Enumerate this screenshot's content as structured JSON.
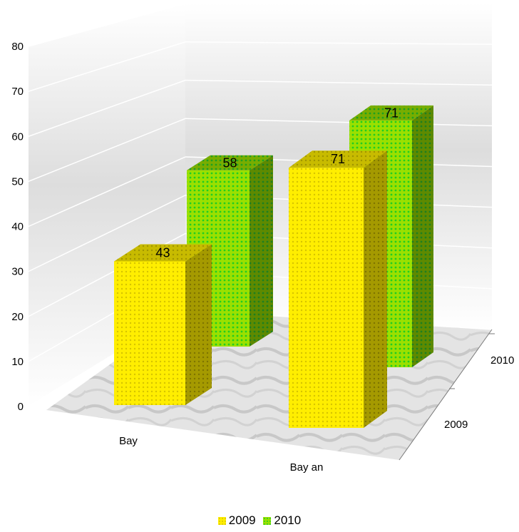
{
  "chart_data": {
    "type": "bar",
    "categories": [
      "Bay",
      "Bay an"
    ],
    "series": [
      {
        "name": "2009",
        "values": [
          43,
          71
        ]
      },
      {
        "name": "2010",
        "values": [
          58,
          71
        ]
      }
    ],
    "depth_labels": [
      "2009",
      "2010"
    ],
    "ylim": [
      0,
      80
    ],
    "yticks": [
      "0",
      "10",
      "20",
      "30",
      "40",
      "50",
      "60",
      "70",
      "80"
    ],
    "grid": true,
    "legend_position": "bottom",
    "colors": {
      "2009": "#ffee00",
      "2010": "#22cc22"
    }
  }
}
